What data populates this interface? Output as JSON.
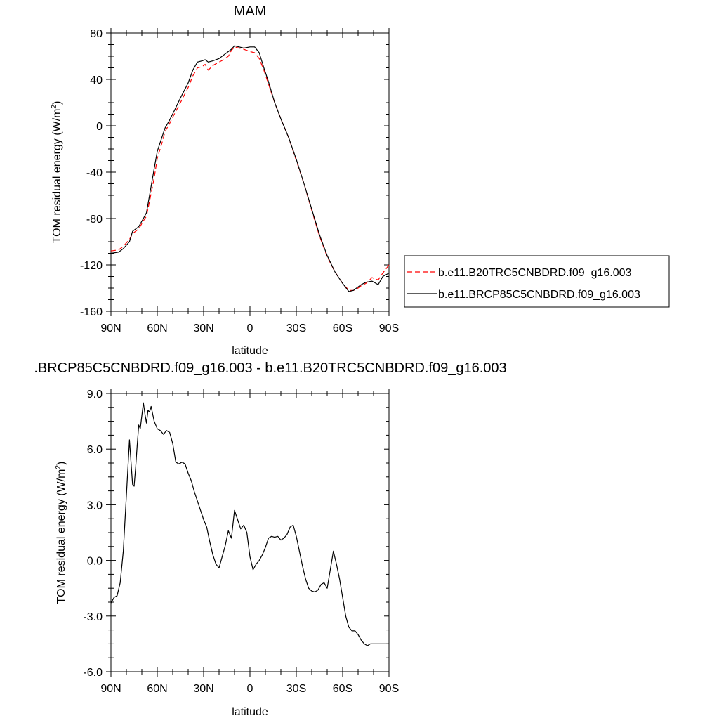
{
  "chart_data": [
    {
      "type": "line",
      "title": "MAM",
      "xlabel": "latitude",
      "ylabel": "TOM residual energy (W/m",
      "ylabel_sup": "2",
      "ylabel_close": ")",
      "xlim": [
        90,
        -90
      ],
      "ylim": [
        -160,
        80
      ],
      "x_ticks": [
        90,
        60,
        30,
        0,
        -30,
        -60,
        -90
      ],
      "x_tick_labels": [
        "90N",
        "60N",
        "30N",
        "0",
        "30S",
        "60S",
        "90S"
      ],
      "y_ticks": [
        80,
        40,
        0,
        -40,
        -80,
        -120,
        -160
      ],
      "y_tick_labels": [
        "80",
        "40",
        "0",
        "-40",
        "-80",
        "-120",
        "-160"
      ],
      "grid": false,
      "legend_position": "right",
      "series": [
        {
          "name": "b.e11.B20TRC5CNBDRD.f09_g16.003",
          "color": "#ff0000",
          "style": "dashed",
          "x": [
            90,
            85,
            82,
            78,
            76,
            72,
            69,
            67,
            65,
            62,
            60,
            57,
            55,
            52,
            49,
            45,
            40,
            37,
            34,
            31,
            29,
            27,
            24,
            20,
            17,
            14,
            12,
            10,
            7,
            4,
            0,
            -3,
            -6,
            -9,
            -12,
            -16,
            -20,
            -25,
            -30,
            -35,
            -40,
            -45,
            -50,
            -55,
            -60,
            -64,
            -67,
            -70,
            -72,
            -75,
            -79,
            -83,
            -86,
            -90
          ],
          "y": [
            -108,
            -107,
            -104,
            -98,
            -93,
            -89,
            -82,
            -78,
            -65,
            -45,
            -28,
            -15,
            -5,
            2,
            10,
            20,
            33,
            43,
            50,
            51,
            53,
            48,
            52,
            55,
            57,
            60,
            65,
            68,
            67,
            66,
            64,
            63,
            58,
            48,
            36,
            20,
            6,
            -10,
            -30,
            -50,
            -73,
            -95,
            -113,
            -126,
            -136,
            -142,
            -142,
            -140,
            -138,
            -136,
            -131,
            -133,
            -127,
            -120
          ]
        },
        {
          "name": "b.e11.BRCP85C5CNBDRD.f09_g16.003",
          "color": "#000000",
          "style": "solid",
          "x": [
            90,
            85,
            82,
            78,
            76,
            72,
            69,
            67,
            65,
            62,
            60,
            57,
            55,
            52,
            49,
            45,
            40,
            37,
            34,
            31,
            29,
            27,
            24,
            20,
            17,
            14,
            12,
            10,
            7,
            4,
            0,
            -3,
            -6,
            -9,
            -12,
            -16,
            -20,
            -25,
            -30,
            -35,
            -40,
            -45,
            -50,
            -55,
            -60,
            -64,
            -67,
            -70,
            -72,
            -75,
            -79,
            -83,
            -86,
            -90
          ],
          "y": [
            -110,
            -109,
            -106,
            -100,
            -91,
            -87,
            -80,
            -75,
            -60,
            -37,
            -22,
            -10,
            -2,
            5,
            13,
            24,
            37,
            48,
            55,
            56,
            57,
            55,
            56,
            58,
            61,
            64,
            66,
            69,
            68,
            67,
            68,
            68,
            63,
            50,
            38,
            20,
            6,
            -10,
            -29,
            -50,
            -72,
            -94,
            -112,
            -126,
            -136,
            -143,
            -142,
            -139,
            -137,
            -135,
            -134,
            -137,
            -130,
            -127
          ]
        }
      ]
    },
    {
      "type": "line",
      "title": ".BRCP85C5CNBDRD.f09_g16.003 - b.e11.B20TRC5CNBDRD.f09_g16.003",
      "xlabel": "latitude",
      "ylabel": "TOM residual energy (W/m",
      "ylabel_sup": "2",
      "ylabel_close": ")",
      "xlim": [
        90,
        -90
      ],
      "ylim": [
        -6,
        9
      ],
      "x_ticks": [
        90,
        60,
        30,
        0,
        -30,
        -60,
        -90
      ],
      "x_tick_labels": [
        "90N",
        "60N",
        "30N",
        "0",
        "30S",
        "60S",
        "90S"
      ],
      "y_ticks": [
        9,
        6,
        3,
        0,
        -3,
        -6
      ],
      "y_tick_labels": [
        "9.0",
        "6.0",
        "3.0",
        "0.0",
        "-3.0",
        "-6.0"
      ],
      "grid": false,
      "series": [
        {
          "color": "#000000",
          "style": "solid",
          "x": [
            90,
            88,
            86,
            84,
            82,
            80,
            78,
            76,
            75,
            74,
            73,
            72,
            71,
            70,
            69,
            68,
            67,
            66,
            65,
            64,
            62,
            60,
            58,
            56,
            54,
            52,
            50,
            48,
            46,
            44,
            42,
            40,
            38,
            36,
            34,
            32,
            30,
            28,
            26,
            24,
            22,
            20,
            18,
            16,
            14,
            12,
            10,
            8,
            6,
            4,
            2,
            0,
            -2,
            -4,
            -6,
            -8,
            -10,
            -12,
            -14,
            -16,
            -18,
            -20,
            -22,
            -24,
            -26,
            -28,
            -30,
            -32,
            -34,
            -36,
            -38,
            -40,
            -42,
            -44,
            -46,
            -48,
            -50,
            -52,
            -54,
            -56,
            -58,
            -60,
            -62,
            -64,
            -66,
            -68,
            -70,
            -72,
            -74,
            -76,
            -78,
            -80,
            -82,
            -84,
            -86,
            -88,
            -90
          ],
          "y": [
            -2.3,
            -2.0,
            -1.9,
            -1.2,
            0.5,
            3.5,
            6.5,
            4.1,
            4.0,
            5.0,
            6.2,
            7.3,
            7.1,
            7.8,
            8.5,
            7.9,
            7.4,
            8.1,
            8.0,
            8.3,
            7.5,
            7.1,
            7.0,
            6.8,
            7.0,
            6.9,
            6.3,
            5.3,
            5.2,
            5.3,
            5.2,
            4.7,
            4.3,
            3.7,
            3.2,
            2.7,
            2.2,
            1.8,
            1.0,
            0.3,
            -0.2,
            -0.4,
            0.2,
            0.8,
            1.6,
            1.2,
            2.7,
            2.2,
            1.7,
            1.9,
            1.5,
            0.2,
            -0.5,
            -0.2,
            0.0,
            0.3,
            0.7,
            1.2,
            1.3,
            1.25,
            1.3,
            1.1,
            1.2,
            1.4,
            1.8,
            1.9,
            1.3,
            0.5,
            -0.3,
            -1.0,
            -1.5,
            -1.65,
            -1.7,
            -1.6,
            -1.3,
            -1.2,
            -1.5,
            -0.5,
            0.5,
            -0.2,
            -1.0,
            -2.0,
            -3.0,
            -3.6,
            -3.8,
            -3.8,
            -4.0,
            -4.3,
            -4.5,
            -4.6,
            -4.5,
            -4.5,
            -4.5,
            -4.5,
            -4.5,
            -4.5,
            -4.5
          ]
        }
      ]
    }
  ]
}
